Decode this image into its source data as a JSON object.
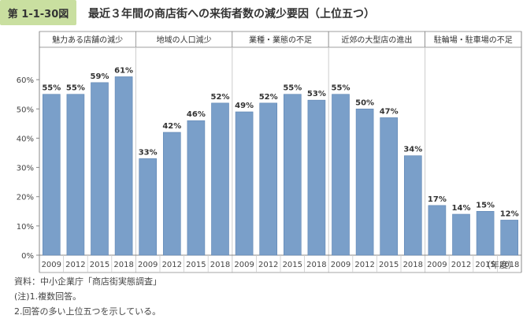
{
  "figure": {
    "number": "第 1-1-30図",
    "title": "最近３年間の商店街への来街者数の減少要因（上位五つ）"
  },
  "notes": {
    "source": "資料：中小企業庁「商店街実態調査」",
    "note1": "(注)1.複数回答。",
    "note2": "2.回答の多い上位五つを示している。",
    "unit": "（年度）"
  },
  "colors": {
    "bar": "#7a9fc9",
    "badge": "#c9dfa0",
    "grid": "#cccccc",
    "axis": "#888888"
  },
  "chart_data": {
    "type": "bar",
    "title": "",
    "xlabel": "（年度）",
    "ylabel": "",
    "ylim": [
      0,
      70
    ],
    "yticks": [
      0,
      10,
      20,
      30,
      40,
      50,
      60
    ],
    "ytick_labels": [
      "0%",
      "10%",
      "20%",
      "30%",
      "40%",
      "50%",
      "60%"
    ],
    "grid": false,
    "x": [
      "2009",
      "2012",
      "2015",
      "2018"
    ],
    "groups": [
      {
        "name": "魅力ある店舗の減少",
        "values": [
          55,
          55,
          59,
          61
        ],
        "labels": [
          "55%",
          "55%",
          "59%",
          "61%"
        ]
      },
      {
        "name": "地域の人口減少",
        "values": [
          33,
          42,
          46,
          52
        ],
        "labels": [
          "33%",
          "42%",
          "46%",
          "52%"
        ]
      },
      {
        "name": "業種・業態の不足",
        "values": [
          49,
          52,
          55,
          53
        ],
        "labels": [
          "49%",
          "52%",
          "55%",
          "53%"
        ]
      },
      {
        "name": "近郊の大型店の進出",
        "values": [
          55,
          50,
          47,
          34
        ],
        "labels": [
          "55%",
          "50%",
          "47%",
          "34%"
        ]
      },
      {
        "name": "駐輪場・駐車場の不足",
        "values": [
          17,
          14,
          15,
          12
        ],
        "labels": [
          "17%",
          "14%",
          "15%",
          "12%"
        ]
      }
    ]
  }
}
